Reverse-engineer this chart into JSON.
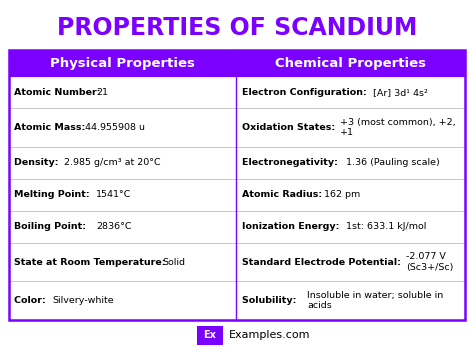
{
  "title": "PROPERTIES OF SCANDIUM",
  "title_color": "#7B00FF",
  "bg_color": "#ffffff",
  "header_bg": "#7B00FF",
  "header_text_color": "#ffffff",
  "header_left": "Physical Properties",
  "header_right": "Chemical Properties",
  "border_color": "#7B00FF",
  "row_border_color": "#bbbbbb",
  "physical_rows": [
    [
      "Atomic Number: ",
      "21"
    ],
    [
      "Atomic Mass: ",
      "44.955908 u"
    ],
    [
      "Density: ",
      "2.985 g/cm³ at 20°C"
    ],
    [
      "Melting Point: ",
      "1541°C"
    ],
    [
      "Boiling Point: ",
      "2836°C"
    ],
    [
      "State at Room Temperature: ",
      "Solid"
    ],
    [
      "Color: ",
      "Silvery-white"
    ]
  ],
  "chemical_rows": [
    [
      "Electron Configuration: ",
      "[Ar] 3d¹ 4s²"
    ],
    [
      "Oxidation States: ",
      "+3 (most common), +2,\n+1"
    ],
    [
      "Electronegativity: ",
      "1.36 (Pauling scale)"
    ],
    [
      "Atomic Radius: ",
      "162 pm"
    ],
    [
      "Ionization Energy: ",
      "1st: 633.1 kJ/mol"
    ],
    [
      "Standard Electrode Potential: ",
      "-2.077 V\n(Sc3+/Sc)"
    ],
    [
      "Solubility: ",
      "Insoluble in water; soluble in\nacids"
    ]
  ],
  "footer_text": "Examples.com",
  "footer_box_color": "#7B00FF",
  "footer_box_text": "Ex",
  "font_size": 6.8,
  "header_font_size": 9.5,
  "title_font_size": 17
}
